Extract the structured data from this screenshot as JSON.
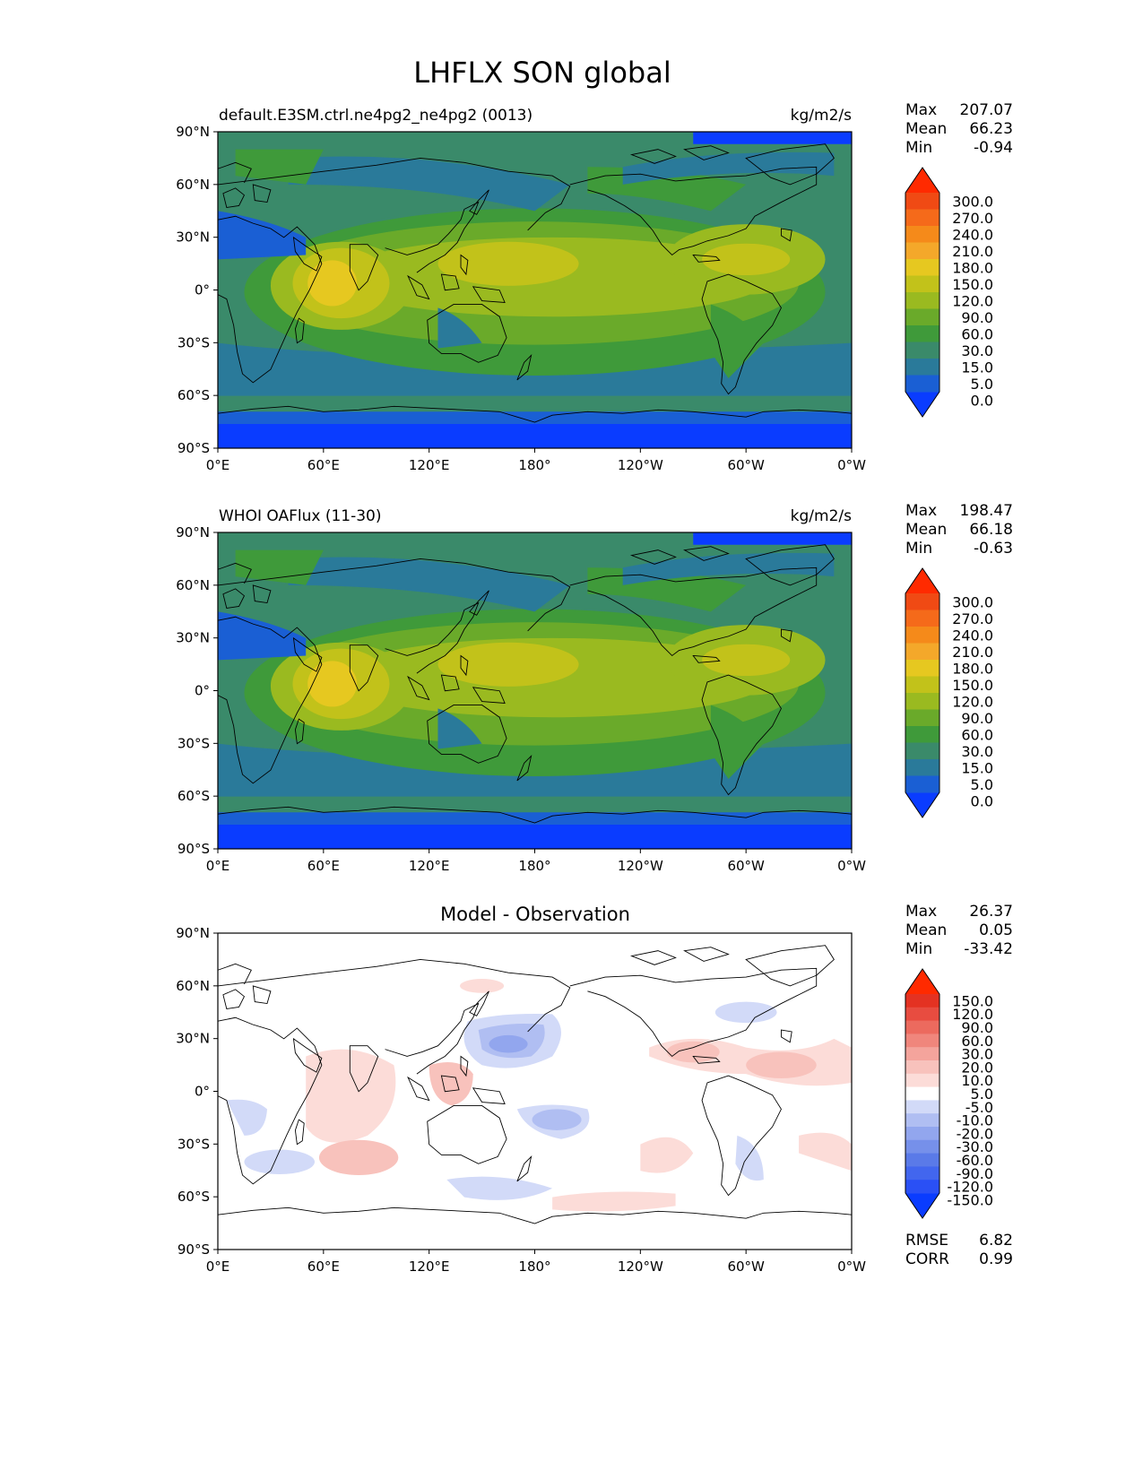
{
  "figure": {
    "title": "LHFLX SON global"
  },
  "chart_data": [
    {
      "type": "heatmap",
      "panel": "test",
      "title_left": "default.E3SM.ctrl.ne4pg2_ne4pg2 (0013)",
      "title_center": "",
      "units": "kg/m2/s",
      "xticks": [
        "0°E",
        "60°E",
        "120°E",
        "180°",
        "120°W",
        "60°W",
        "0°W"
      ],
      "yticks": [
        "90°N",
        "60°N",
        "30°N",
        "0°",
        "30°S",
        "60°S",
        "90°S"
      ],
      "xlim": [
        0,
        360
      ],
      "ylim": [
        -90,
        90
      ],
      "stats": {
        "max_label": "Max",
        "max": "207.07",
        "mean_label": "Mean",
        "mean": "66.23",
        "min_label": "Min",
        "min": "-0.94"
      },
      "colorbar": {
        "levels": [
          "0.0",
          "5.0",
          "15.0",
          "30.0",
          "60.0",
          "90.0",
          "120.0",
          "150.0",
          "180.0",
          "210.0",
          "240.0",
          "270.0",
          "300.0"
        ],
        "colors": [
          "#0a3cff",
          "#1a5fd4",
          "#2a7a9a",
          "#3a8a6a",
          "#3f9a3a",
          "#6aaa2a",
          "#9aba20",
          "#c2c21a",
          "#e6c820",
          "#f4a82a",
          "#f58a1a",
          "#f56a1a",
          "#f04a14",
          "#ff2a00"
        ]
      }
    },
    {
      "type": "heatmap",
      "panel": "reference",
      "title_left": "WHOI OAFlux (11-30)",
      "title_center": "",
      "units": "kg/m2/s",
      "xticks": [
        "0°E",
        "60°E",
        "120°E",
        "180°",
        "120°W",
        "60°W",
        "0°W"
      ],
      "yticks": [
        "90°N",
        "60°N",
        "30°N",
        "0°",
        "30°S",
        "60°S",
        "90°S"
      ],
      "xlim": [
        0,
        360
      ],
      "ylim": [
        -90,
        90
      ],
      "stats": {
        "max_label": "Max",
        "max": "198.47",
        "mean_label": "Mean",
        "mean": "66.18",
        "min_label": "Min",
        "min": "-0.63"
      },
      "colorbar": {
        "levels": [
          "0.0",
          "5.0",
          "15.0",
          "30.0",
          "60.0",
          "90.0",
          "120.0",
          "150.0",
          "180.0",
          "210.0",
          "240.0",
          "270.0",
          "300.0"
        ],
        "colors": [
          "#0a3cff",
          "#1a5fd4",
          "#2a7a9a",
          "#3a8a6a",
          "#3f9a3a",
          "#6aaa2a",
          "#9aba20",
          "#c2c21a",
          "#e6c820",
          "#f4a82a",
          "#f58a1a",
          "#f56a1a",
          "#f04a14",
          "#ff2a00"
        ]
      }
    },
    {
      "type": "heatmap",
      "panel": "difference",
      "title_left": "",
      "title_center": "Model - Observation",
      "units": "",
      "xticks": [
        "0°E",
        "60°E",
        "120°E",
        "180°",
        "120°W",
        "60°W",
        "0°W"
      ],
      "yticks": [
        "90°N",
        "60°N",
        "30°N",
        "0°",
        "30°S",
        "60°S",
        "90°S"
      ],
      "xlim": [
        0,
        360
      ],
      "ylim": [
        -90,
        90
      ],
      "stats": {
        "max_label": "Max",
        "max": "26.37",
        "mean_label": "Mean",
        "mean": "0.05",
        "min_label": "Min",
        "min": "-33.42"
      },
      "colorbar": {
        "levels": [
          "-150.0",
          "-120.0",
          "-90.0",
          "-60.0",
          "-30.0",
          "-20.0",
          "-10.0",
          "-5.0",
          "5.0",
          "10.0",
          "20.0",
          "30.0",
          "60.0",
          "90.0",
          "120.0",
          "150.0"
        ],
        "colors": [
          "#0a3cff",
          "#2a50f5",
          "#4266ee",
          "#5a7ae8",
          "#7690ea",
          "#92a6ee",
          "#b0beF2",
          "#d2daf8",
          "#ffffff",
          "#fcdcd8",
          "#f8c2bc",
          "#f4a49c",
          "#f0867c",
          "#ec6a5e",
          "#e84c40",
          "#e43222",
          "#ff2a00"
        ]
      },
      "metrics": {
        "rmse_label": "RMSE",
        "rmse": "6.82",
        "corr_label": "CORR",
        "corr": "0.99"
      }
    }
  ]
}
